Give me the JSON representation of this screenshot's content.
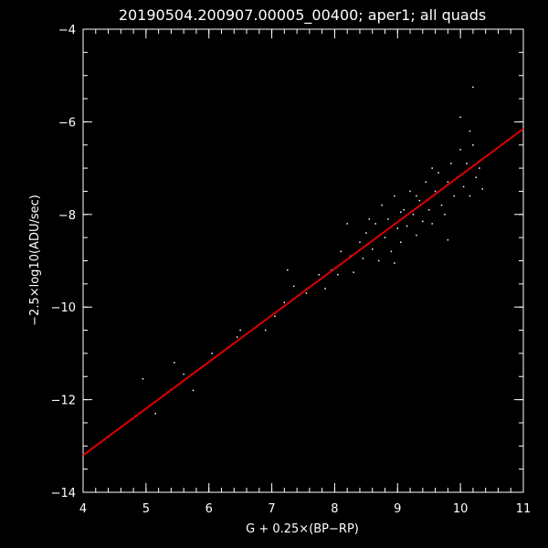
{
  "chart_data": {
    "type": "scatter",
    "title": "20190504.200907.00005_00400; aper1; all quads",
    "xlabel": "G + 0.25×(BP−RP)",
    "ylabel": "−2.5×log10(ADU/sec)",
    "xlim": [
      4,
      11
    ],
    "ylim": [
      -14,
      -4
    ],
    "xticks": [
      "4",
      "5",
      "6",
      "7",
      "8",
      "9",
      "10",
      "11"
    ],
    "yticks": [
      "-4",
      "-6",
      "-8",
      "-10",
      "-12",
      "-14"
    ],
    "grid": false,
    "fit_line": {
      "x": [
        4,
        11
      ],
      "y": [
        -13.2,
        -6.15
      ],
      "color": "#e00000"
    },
    "series": [
      {
        "points": [
          [
            4.95,
            -11.55
          ],
          [
            5.15,
            -12.3
          ],
          [
            5.45,
            -11.2
          ],
          [
            5.6,
            -11.45
          ],
          [
            5.75,
            -11.8
          ],
          [
            6.05,
            -11.0
          ],
          [
            6.45,
            -10.65
          ],
          [
            6.5,
            -10.5
          ],
          [
            6.9,
            -10.5
          ],
          [
            7.05,
            -10.2
          ],
          [
            7.2,
            -9.9
          ],
          [
            7.25,
            -9.2
          ],
          [
            7.35,
            -9.55
          ],
          [
            7.55,
            -9.7
          ],
          [
            7.75,
            -9.3
          ],
          [
            7.85,
            -9.6
          ],
          [
            7.95,
            -9.2
          ],
          [
            8.05,
            -9.3
          ],
          [
            8.1,
            -8.8
          ],
          [
            8.2,
            -8.2
          ],
          [
            8.25,
            -8.9
          ],
          [
            8.3,
            -9.25
          ],
          [
            8.4,
            -8.6
          ],
          [
            8.45,
            -8.95
          ],
          [
            8.5,
            -8.4
          ],
          [
            8.6,
            -8.75
          ],
          [
            8.65,
            -8.2
          ],
          [
            8.7,
            -9.0
          ],
          [
            8.75,
            -7.8
          ],
          [
            8.8,
            -8.5
          ],
          [
            8.85,
            -8.1
          ],
          [
            8.9,
            -8.8
          ],
          [
            8.95,
            -7.6
          ],
          [
            9.0,
            -8.3
          ],
          [
            9.05,
            -8.6
          ],
          [
            9.1,
            -7.9
          ],
          [
            9.15,
            -8.25
          ],
          [
            9.2,
            -7.5
          ],
          [
            9.25,
            -8.0
          ],
          [
            9.3,
            -8.45
          ],
          [
            9.35,
            -7.7
          ],
          [
            9.4,
            -8.15
          ],
          [
            9.45,
            -7.3
          ],
          [
            9.5,
            -7.9
          ],
          [
            9.55,
            -8.2
          ],
          [
            9.6,
            -7.5
          ],
          [
            9.65,
            -7.1
          ],
          [
            9.7,
            -7.8
          ],
          [
            9.75,
            -8.0
          ],
          [
            9.8,
            -7.3
          ],
          [
            9.85,
            -6.9
          ],
          [
            9.9,
            -7.6
          ],
          [
            9.95,
            -7.2
          ],
          [
            10.0,
            -6.6
          ],
          [
            10.05,
            -7.4
          ],
          [
            10.1,
            -6.9
          ],
          [
            10.15,
            -7.6
          ],
          [
            10.2,
            -6.5
          ],
          [
            10.25,
            -7.2
          ],
          [
            10.3,
            -7.0
          ],
          [
            10.0,
            -5.9
          ],
          [
            10.2,
            -5.25
          ],
          [
            9.8,
            -8.55
          ],
          [
            10.35,
            -7.45
          ],
          [
            10.15,
            -6.2
          ],
          [
            9.55,
            -7.0
          ],
          [
            9.3,
            -7.6
          ],
          [
            9.05,
            -7.95
          ],
          [
            8.55,
            -8.1
          ],
          [
            8.95,
            -9.05
          ]
        ]
      }
    ]
  }
}
